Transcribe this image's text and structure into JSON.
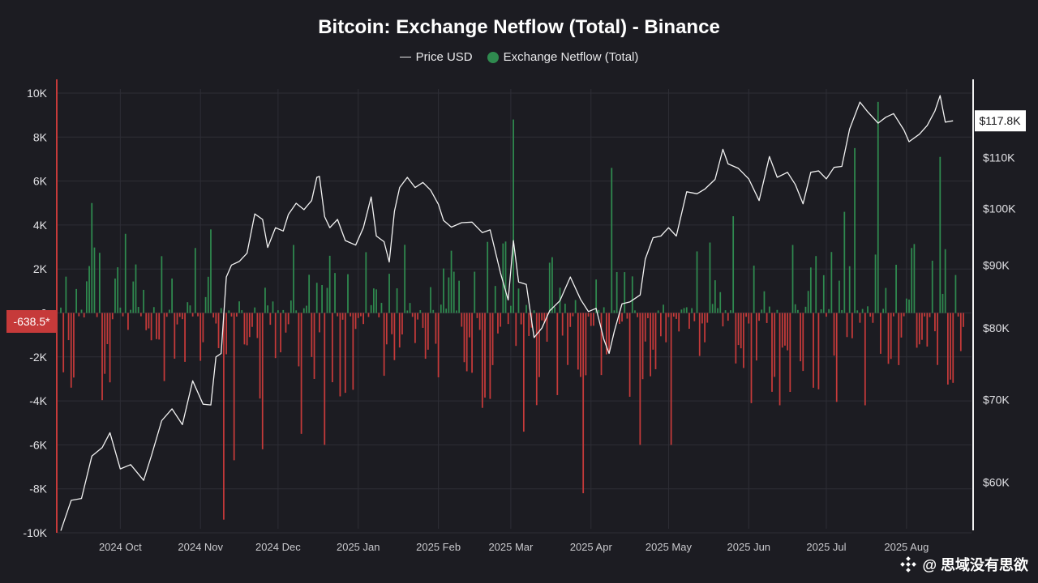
{
  "chart_data": {
    "type": "bar+line",
    "title": "Bitcoin: Exchange Netflow (Total) - Binance",
    "legend": {
      "placement": "top-center",
      "price_label": "Price USD",
      "netflow_label": "Exchange Netflow (Total)"
    },
    "colors": {
      "positive": "#2f8a4f",
      "negative": "#c63a3a",
      "price_line": "#f2f2f2",
      "background": "#1c1c22",
      "grid": "#2e2e36"
    },
    "left_axis": {
      "ylim": [
        -10000,
        10000
      ],
      "ticks": [
        10000,
        8000,
        6000,
        4000,
        2000,
        0,
        -2000,
        -4000,
        -6000,
        -8000,
        -10000
      ],
      "tick_labels": [
        "10K",
        "8K",
        "6K",
        "4K",
        "2K",
        "0",
        "-2K",
        "-4K",
        "-6K",
        "-8K",
        "-10K"
      ]
    },
    "right_axis": {
      "scale": "log",
      "ylim": [
        55000,
        125000
      ],
      "ticks": [
        60000,
        70000,
        80000,
        90000,
        100000,
        110000
      ],
      "tick_labels": [
        "$60K",
        "$70K",
        "$80K",
        "$90K",
        "$100K",
        "$110K"
      ]
    },
    "x_axis": {
      "xlim": [
        "2024-09-08",
        "2025-08-23"
      ],
      "ticks": [
        "2024-10-01",
        "2024-11-01",
        "2024-12-01",
        "2025-01-01",
        "2025-02-01",
        "2025-03-01",
        "2025-04-01",
        "2025-05-01",
        "2025-06-01",
        "2025-07-01",
        "2025-08-01"
      ],
      "tick_labels": [
        "2024 Oct",
        "2024 Nov",
        "2024 Dec",
        "2025 Jan",
        "2025 Feb",
        "2025 Mar",
        "2025 Apr",
        "2025 May",
        "2025 Jun",
        "2025 Jul",
        "2025 Aug"
      ]
    },
    "current_price_label": "$117.8K",
    "current_price_value": 117800,
    "current_netflow_label": "-638.5*",
    "current_netflow_value": -638.5,
    "price_series": [
      [
        "2024-09-08",
        54800
      ],
      [
        "2024-09-12",
        58000
      ],
      [
        "2024-09-16",
        58200
      ],
      [
        "2024-09-20",
        63000
      ],
      [
        "2024-09-24",
        64000
      ],
      [
        "2024-09-27",
        65800
      ],
      [
        "2024-10-01",
        61500
      ],
      [
        "2024-10-05",
        62000
      ],
      [
        "2024-10-10",
        60200
      ],
      [
        "2024-10-13",
        63000
      ],
      [
        "2024-10-17",
        67300
      ],
      [
        "2024-10-21",
        68800
      ],
      [
        "2024-10-25",
        66800
      ],
      [
        "2024-10-29",
        72500
      ],
      [
        "2024-11-02",
        69400
      ],
      [
        "2024-11-05",
        69300
      ],
      [
        "2024-11-07",
        75800
      ],
      [
        "2024-11-09",
        76300
      ],
      [
        "2024-11-11",
        88000
      ],
      [
        "2024-11-13",
        90000
      ],
      [
        "2024-11-16",
        90600
      ],
      [
        "2024-11-19",
        92000
      ],
      [
        "2024-11-22",
        99000
      ],
      [
        "2024-11-25",
        98000
      ],
      [
        "2024-11-27",
        93000
      ],
      [
        "2024-11-30",
        96500
      ],
      [
        "2024-12-03",
        95900
      ],
      [
        "2024-12-05",
        98900
      ],
      [
        "2024-12-08",
        101000
      ],
      [
        "2024-12-11",
        99800
      ],
      [
        "2024-12-14",
        101500
      ],
      [
        "2024-12-16",
        106000
      ],
      [
        "2024-12-17",
        106200
      ],
      [
        "2024-12-19",
        98500
      ],
      [
        "2024-12-21",
        96500
      ],
      [
        "2024-12-24",
        98000
      ],
      [
        "2024-12-27",
        94200
      ],
      [
        "2024-12-31",
        93400
      ],
      [
        "2025-01-03",
        96500
      ],
      [
        "2025-01-06",
        102200
      ],
      [
        "2025-01-08",
        95000
      ],
      [
        "2025-01-11",
        94000
      ],
      [
        "2025-01-13",
        90500
      ],
      [
        "2025-01-15",
        99500
      ],
      [
        "2025-01-17",
        104000
      ],
      [
        "2025-01-20",
        106000
      ],
      [
        "2025-01-23",
        104000
      ],
      [
        "2025-01-26",
        105000
      ],
      [
        "2025-01-29",
        103500
      ],
      [
        "2025-02-01",
        100800
      ],
      [
        "2025-02-03",
        97800
      ],
      [
        "2025-02-06",
        96600
      ],
      [
        "2025-02-10",
        97400
      ],
      [
        "2025-02-14",
        97500
      ],
      [
        "2025-02-18",
        95600
      ],
      [
        "2025-02-21",
        96100
      ],
      [
        "2025-02-25",
        88700
      ],
      [
        "2025-02-28",
        84300
      ],
      [
        "2025-03-02",
        94200
      ],
      [
        "2025-03-04",
        87200
      ],
      [
        "2025-03-07",
        86800
      ],
      [
        "2025-03-10",
        78600
      ],
      [
        "2025-03-13",
        80000
      ],
      [
        "2025-03-16",
        82600
      ],
      [
        "2025-03-20",
        84200
      ],
      [
        "2025-03-24",
        88000
      ],
      [
        "2025-03-28",
        84400
      ],
      [
        "2025-03-31",
        82500
      ],
      [
        "2025-04-03",
        83000
      ],
      [
        "2025-04-06",
        78300
      ],
      [
        "2025-04-08",
        76300
      ],
      [
        "2025-04-10",
        79500
      ],
      [
        "2025-04-13",
        83700
      ],
      [
        "2025-04-16",
        84000
      ],
      [
        "2025-04-20",
        85100
      ],
      [
        "2025-04-22",
        91000
      ],
      [
        "2025-04-25",
        94700
      ],
      [
        "2025-04-28",
        95000
      ],
      [
        "2025-05-01",
        96500
      ],
      [
        "2025-05-04",
        95000
      ],
      [
        "2025-05-08",
        103200
      ],
      [
        "2025-05-12",
        102800
      ],
      [
        "2025-05-15",
        103700
      ],
      [
        "2025-05-19",
        105600
      ],
      [
        "2025-05-22",
        111700
      ],
      [
        "2025-05-24",
        108700
      ],
      [
        "2025-05-28",
        107800
      ],
      [
        "2025-06-01",
        105700
      ],
      [
        "2025-06-05",
        101500
      ],
      [
        "2025-06-09",
        110200
      ],
      [
        "2025-06-12",
        106000
      ],
      [
        "2025-06-16",
        107000
      ],
      [
        "2025-06-19",
        104600
      ],
      [
        "2025-06-22",
        100900
      ],
      [
        "2025-06-25",
        107000
      ],
      [
        "2025-06-28",
        107300
      ],
      [
        "2025-07-01",
        105700
      ],
      [
        "2025-07-04",
        108000
      ],
      [
        "2025-07-07",
        108200
      ],
      [
        "2025-07-10",
        116000
      ],
      [
        "2025-07-14",
        122000
      ],
      [
        "2025-07-17",
        119800
      ],
      [
        "2025-07-21",
        117300
      ],
      [
        "2025-07-24",
        118600
      ],
      [
        "2025-07-27",
        119400
      ],
      [
        "2025-07-31",
        115800
      ],
      [
        "2025-08-02",
        113300
      ],
      [
        "2025-08-06",
        114900
      ],
      [
        "2025-08-09",
        116800
      ],
      [
        "2025-08-12",
        120000
      ],
      [
        "2025-08-14",
        123500
      ],
      [
        "2025-08-16",
        117500
      ],
      [
        "2025-08-19",
        117800
      ]
    ]
  },
  "watermark": {
    "text": "@ 思域没有思欲",
    "icon": "binance-logo-icon"
  }
}
